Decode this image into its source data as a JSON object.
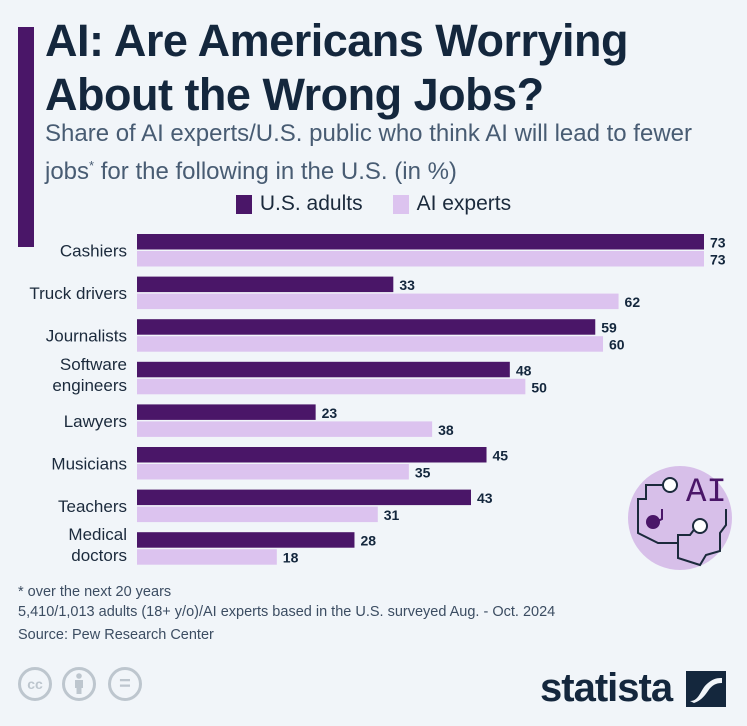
{
  "header": {
    "title": "AI: Are Americans Worrying About the Wrong Jobs?",
    "subtitle_main": "Share of AI experts/U.S. public who think AI will lead to fewer jobs",
    "subtitle_sup": "*",
    "subtitle_tail": " for the following in the U.S. (in %)"
  },
  "colors": {
    "accent": "#4a1668",
    "us_adults": "#4a1668",
    "ai_experts": "#dcc3ef",
    "text": "#14273d"
  },
  "chart_data": {
    "type": "bar",
    "orientation": "horizontal",
    "title": "AI: Are Americans Worrying About the Wrong Jobs?",
    "subtitle": "Share of AI experts/U.S. public who think AI will lead to fewer jobs* for the following in the U.S. (in %)",
    "categories": [
      "Cashiers",
      "Truck drivers",
      "Journalists",
      "Software engineers",
      "Lawyers",
      "Musicians",
      "Teachers",
      "Medical doctors"
    ],
    "category_lines": [
      [
        "Cashiers"
      ],
      [
        "Truck drivers"
      ],
      [
        "Journalists"
      ],
      [
        "Software",
        "engineers"
      ],
      [
        "Lawyers"
      ],
      [
        "Musicians"
      ],
      [
        "Teachers"
      ],
      [
        "Medical",
        "doctors"
      ]
    ],
    "series": [
      {
        "name": "U.S. adults",
        "color": "#4a1668",
        "values": [
          73,
          33,
          59,
          48,
          23,
          45,
          43,
          28
        ]
      },
      {
        "name": "AI experts",
        "color": "#dcc3ef",
        "values": [
          73,
          62,
          60,
          50,
          38,
          35,
          31,
          18
        ]
      }
    ],
    "xlim": [
      0,
      73
    ],
    "xlabel": "",
    "ylabel": "",
    "grid": false,
    "legend_position": "top-center",
    "data_labels": true
  },
  "footer": {
    "note": "* over the next 20 years",
    "survey": "5,410/1,013 adults (18+ y/o)/AI experts based in the U.S. surveyed Aug. - Oct. 2024",
    "source": "Source: Pew Research Center",
    "license_icons": [
      "cc-icon",
      "attribution-icon",
      "no-derivatives-icon"
    ],
    "cc_text": "cc",
    "nd_text": "=",
    "brand": "statista"
  },
  "badge": {
    "text": "AI"
  }
}
